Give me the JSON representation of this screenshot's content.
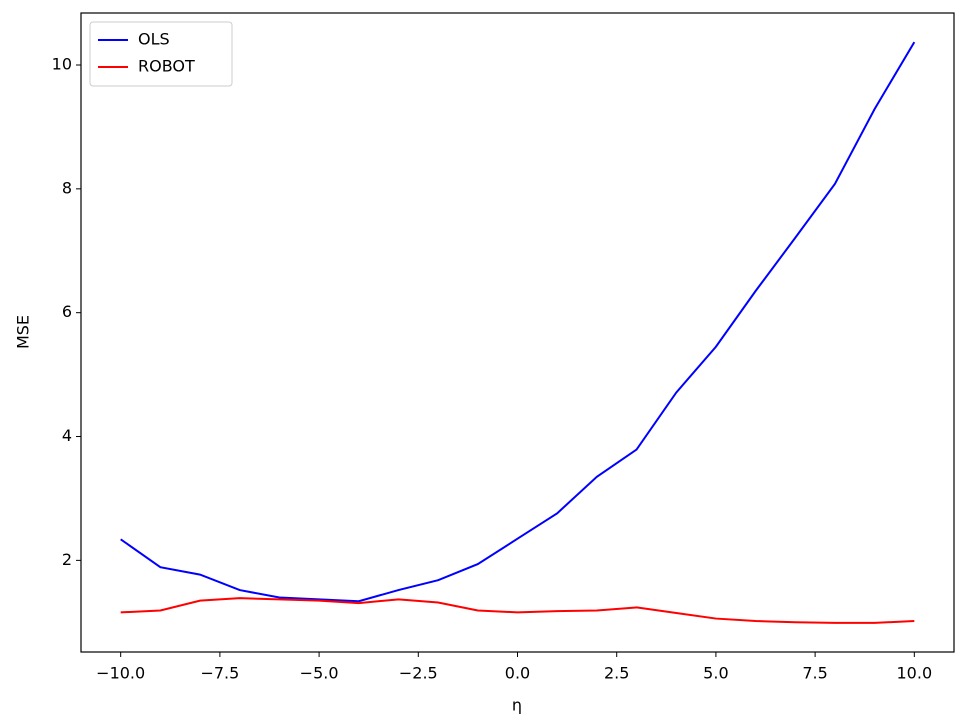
{
  "chart_data": {
    "type": "line",
    "x_label": "η",
    "y_label": "MSE",
    "x": [
      -10,
      -9,
      -8,
      -7,
      -6,
      -5,
      -4,
      -3,
      -2,
      -1,
      0,
      1,
      2,
      3,
      4,
      5,
      6,
      7,
      8,
      9,
      10
    ],
    "series": [
      {
        "name": "OLS",
        "color": "#0000ff",
        "values": [
          2.34,
          1.89,
          1.77,
          1.52,
          1.4,
          1.37,
          1.34,
          1.52,
          1.68,
          1.94,
          2.35,
          2.76,
          3.35,
          3.79,
          4.71,
          5.45,
          6.35,
          7.21,
          8.08,
          9.29,
          10.37
        ]
      },
      {
        "name": "ROBOT",
        "color": "#ff0000",
        "values": [
          1.16,
          1.19,
          1.35,
          1.39,
          1.37,
          1.35,
          1.31,
          1.37,
          1.32,
          1.19,
          1.16,
          1.18,
          1.19,
          1.24,
          1.15,
          1.06,
          1.02,
          1.0,
          0.99,
          0.99,
          1.02
        ]
      }
    ],
    "xlim": [
      -11,
      11
    ],
    "xticks": [
      {
        "value": -10,
        "label": "−10.0"
      },
      {
        "value": -7.5,
        "label": "−7.5"
      },
      {
        "value": -5,
        "label": "−5.0"
      },
      {
        "value": -2.5,
        "label": "−2.5"
      },
      {
        "value": 0,
        "label": "0.0"
      },
      {
        "value": 2.5,
        "label": "2.5"
      },
      {
        "value": 5,
        "label": "5.0"
      },
      {
        "value": 7.5,
        "label": "7.5"
      },
      {
        "value": 10,
        "label": "10.0"
      }
    ],
    "ylim": [
      0.52,
      10.84
    ],
    "yticks": [
      2,
      4,
      6,
      8,
      10
    ],
    "legend": "upper-left"
  }
}
